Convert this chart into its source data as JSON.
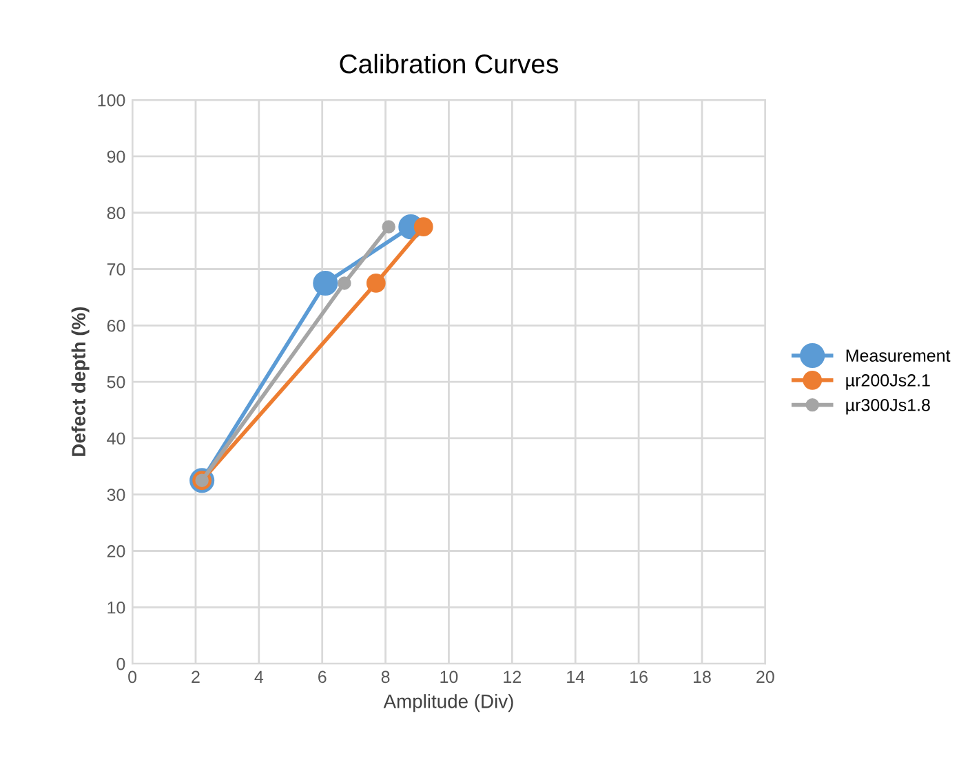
{
  "chart_data": {
    "type": "line",
    "title": "Calibration Curves",
    "xlabel": "Amplitude (Div)",
    "ylabel": "Defect depth (%)",
    "xlim": [
      0,
      20
    ],
    "xticks": [
      0,
      2,
      4,
      6,
      8,
      10,
      12,
      14,
      16,
      18,
      20
    ],
    "ylim": [
      0,
      100
    ],
    "yticks": [
      0,
      10,
      20,
      30,
      40,
      50,
      60,
      70,
      80,
      90,
      100
    ],
    "grid": true,
    "legend": "right",
    "marker": "circle",
    "line_style": "solid",
    "series": [
      {
        "name": "Measurement",
        "color": "#5b9bd5",
        "x": [
          2.2,
          6.1,
          8.8
        ],
        "values": [
          32.5,
          67.5,
          77.5
        ]
      },
      {
        "name": "µr200Js2.1",
        "color": "#ed7d31",
        "x": [
          2.2,
          7.7,
          9.2
        ],
        "values": [
          32.5,
          67.5,
          77.5
        ]
      },
      {
        "name": "µr300Js1.8",
        "color": "#a5a5a5",
        "x": [
          2.2,
          6.7,
          8.1
        ],
        "values": [
          32.5,
          67.5,
          77.5
        ]
      }
    ]
  }
}
